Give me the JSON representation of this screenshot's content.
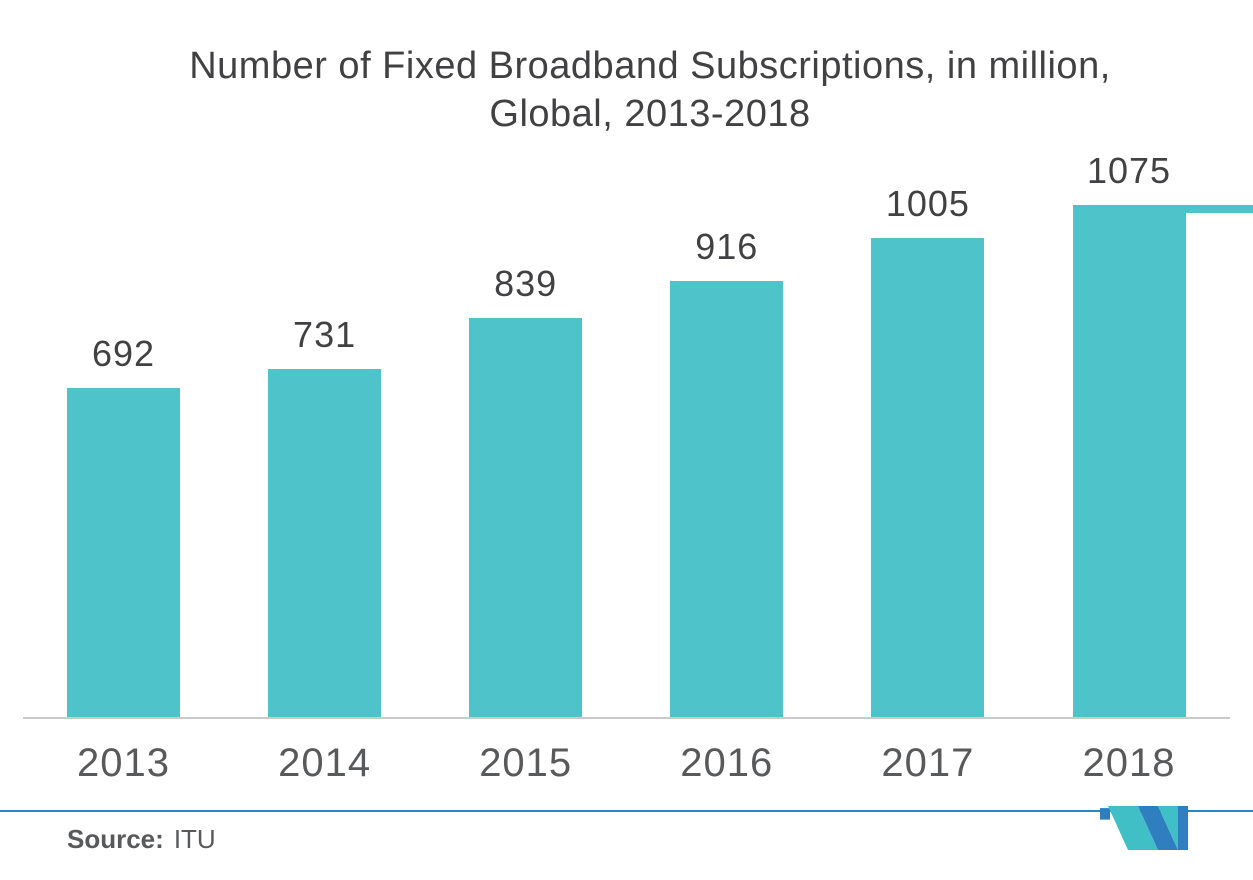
{
  "title": {
    "line1": "Number of Fixed Broadband Subscriptions, in million,",
    "line2": "Global, 2013-2018"
  },
  "footer": {
    "source_label": "Source:",
    "source_value": "ITU",
    "logo": "mordor-intelligence-m-logo"
  },
  "colors": {
    "bar": "#4FC3CA",
    "title_text": "#414042",
    "value_text": "#414042",
    "axis_text": "#58595B",
    "axis_line": "#CBCAC9",
    "footer_line": "#2E86C1",
    "logo_blue": "#2E7EC0",
    "logo_teal": "#41BFC7"
  },
  "chart_data": {
    "type": "bar",
    "title": "Number of Fixed Broadband Subscriptions, in million, Global, 2013-2018",
    "categories": [
      "2013",
      "2014",
      "2015",
      "2016",
      "2017",
      "2018"
    ],
    "values": [
      692,
      731,
      839,
      916,
      1005,
      1075
    ],
    "series_name": "Fixed Broadband Subscriptions (million)",
    "xlabel": "",
    "ylabel": "",
    "ylim": [
      0,
      1075
    ],
    "grid": false,
    "legend": false,
    "data_labels": true,
    "bar_color": "#4FC3CA",
    "source": "ITU"
  }
}
